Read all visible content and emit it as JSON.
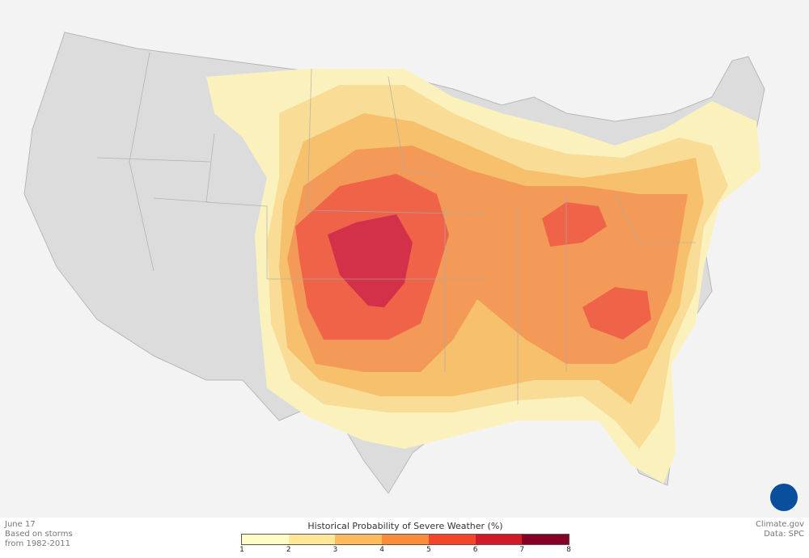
{
  "date": "June 17",
  "note_line1": "Based on storms",
  "note_line2": "from 1982-2011",
  "legend": {
    "title": "Historical Probability of Severe Weather (%)",
    "ticks": [
      "1",
      "2",
      "3",
      "4",
      "5",
      "6",
      "7",
      "8"
    ],
    "colors": [
      "#fffdc6",
      "#fee797",
      "#fdbb5b",
      "#fb8c3b",
      "#f2452a",
      "#d01a2a",
      "#860026"
    ]
  },
  "credit": "Climate.gov",
  "source": "Data: SPC",
  "logo": "NOAA"
}
